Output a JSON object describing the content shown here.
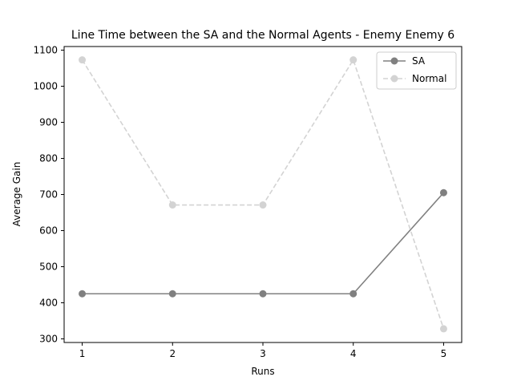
{
  "chart_data": {
    "type": "line",
    "title": "Line Time between the SA and the Normal Agents - Enemy Enemy 6",
    "xlabel": "Runs",
    "ylabel": "Average Gain",
    "x": [
      1,
      2,
      3,
      4,
      5
    ],
    "xticks": [
      "1",
      "2",
      "3",
      "4",
      "5"
    ],
    "yticks": [
      "300",
      "400",
      "500",
      "600",
      "700",
      "800",
      "900",
      "1000",
      "1100"
    ],
    "xlim": [
      0.8,
      5.2
    ],
    "ylim": [
      290,
      1110
    ],
    "grid": false,
    "legend_position": "top-right",
    "series": [
      {
        "name": "SA",
        "values": [
          425,
          425,
          425,
          425,
          705
        ],
        "color": "#808080",
        "linestyle": "solid",
        "marker": "circle"
      },
      {
        "name": "Normal",
        "values": [
          1073,
          671,
          671,
          1073,
          328
        ],
        "color": "#d3d3d3",
        "linestyle": "dashed",
        "marker": "circle"
      }
    ]
  }
}
